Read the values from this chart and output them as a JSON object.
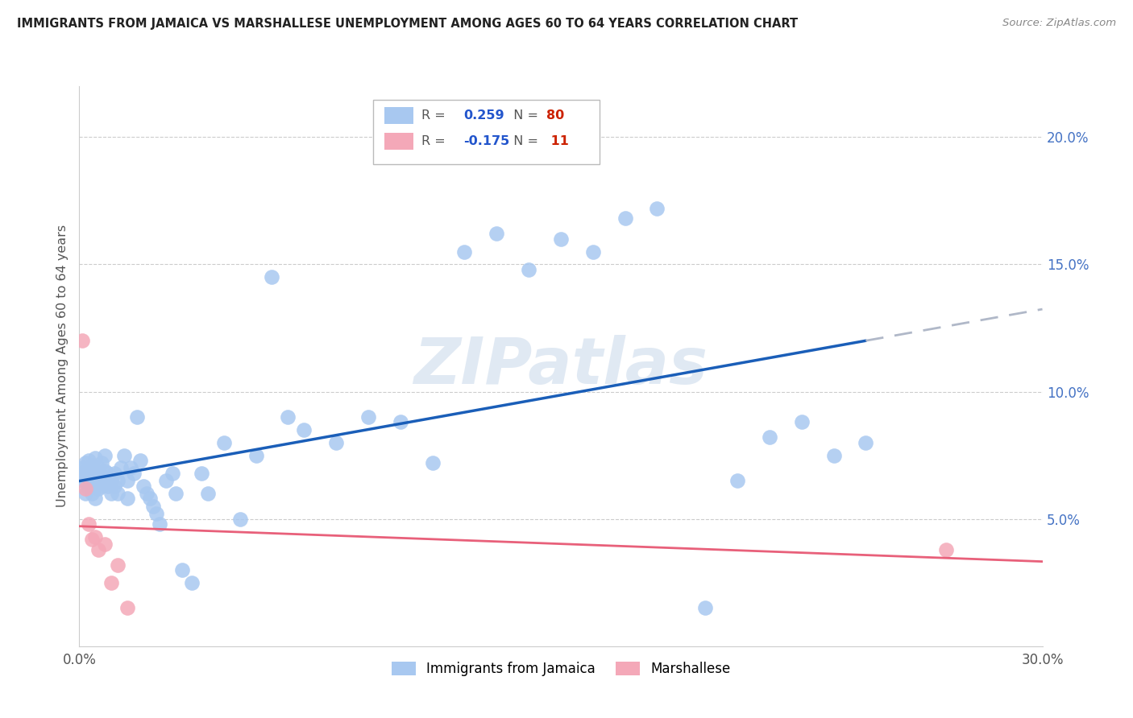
{
  "title": "IMMIGRANTS FROM JAMAICA VS MARSHALLESE UNEMPLOYMENT AMONG AGES 60 TO 64 YEARS CORRELATION CHART",
  "source": "Source: ZipAtlas.com",
  "ylabel": "Unemployment Among Ages 60 to 64 years",
  "xlim": [
    0.0,
    0.3
  ],
  "ylim": [
    0.0,
    0.22
  ],
  "x_ticks": [
    0.0,
    0.05,
    0.1,
    0.15,
    0.2,
    0.25,
    0.3
  ],
  "x_tick_labels": [
    "0.0%",
    "",
    "",
    "",
    "",
    "",
    "30.0%"
  ],
  "y_ticks_right": [
    0.05,
    0.1,
    0.15,
    0.2
  ],
  "y_tick_labels_right": [
    "5.0%",
    "10.0%",
    "15.0%",
    "20.0%"
  ],
  "r_jamaica": 0.259,
  "n_jamaica": 80,
  "r_marshallese": -0.175,
  "n_marshallese": 11,
  "jamaica_color": "#a8c8f0",
  "marshallese_color": "#f4a8b8",
  "jamaica_line_color": "#1a5eb8",
  "marshallese_line_color": "#e8607a",
  "jamaica_extend_color": "#b0b8c8",
  "watermark_text": "ZIPatlas",
  "jamaica_scatter_x": [
    0.001,
    0.001,
    0.001,
    0.002,
    0.002,
    0.002,
    0.002,
    0.003,
    0.003,
    0.003,
    0.003,
    0.004,
    0.004,
    0.004,
    0.004,
    0.005,
    0.005,
    0.005,
    0.005,
    0.006,
    0.006,
    0.006,
    0.007,
    0.007,
    0.007,
    0.008,
    0.008,
    0.008,
    0.009,
    0.009,
    0.01,
    0.01,
    0.011,
    0.011,
    0.012,
    0.012,
    0.013,
    0.014,
    0.015,
    0.015,
    0.016,
    0.017,
    0.018,
    0.019,
    0.02,
    0.021,
    0.022,
    0.023,
    0.024,
    0.025,
    0.027,
    0.029,
    0.03,
    0.032,
    0.035,
    0.038,
    0.04,
    0.045,
    0.05,
    0.055,
    0.06,
    0.065,
    0.07,
    0.08,
    0.09,
    0.1,
    0.11,
    0.12,
    0.13,
    0.14,
    0.15,
    0.16,
    0.17,
    0.18,
    0.195,
    0.205,
    0.215,
    0.225,
    0.235,
    0.245
  ],
  "jamaica_scatter_y": [
    0.065,
    0.068,
    0.07,
    0.06,
    0.065,
    0.068,
    0.072,
    0.062,
    0.066,
    0.07,
    0.073,
    0.06,
    0.063,
    0.067,
    0.071,
    0.058,
    0.063,
    0.068,
    0.074,
    0.062,
    0.066,
    0.07,
    0.063,
    0.067,
    0.072,
    0.065,
    0.069,
    0.075,
    0.063,
    0.068,
    0.06,
    0.065,
    0.063,
    0.068,
    0.06,
    0.065,
    0.07,
    0.075,
    0.058,
    0.065,
    0.07,
    0.068,
    0.09,
    0.073,
    0.063,
    0.06,
    0.058,
    0.055,
    0.052,
    0.048,
    0.065,
    0.068,
    0.06,
    0.03,
    0.025,
    0.068,
    0.06,
    0.08,
    0.05,
    0.075,
    0.145,
    0.09,
    0.085,
    0.08,
    0.09,
    0.088,
    0.072,
    0.155,
    0.162,
    0.148,
    0.16,
    0.155,
    0.168,
    0.172,
    0.015,
    0.065,
    0.082,
    0.088,
    0.075,
    0.08
  ],
  "marshallese_scatter_x": [
    0.001,
    0.002,
    0.003,
    0.004,
    0.005,
    0.006,
    0.008,
    0.01,
    0.012,
    0.27
  ],
  "marshallese_scatter_y": [
    0.12,
    0.062,
    0.048,
    0.042,
    0.043,
    0.038,
    0.04,
    0.025,
    0.032,
    0.038
  ],
  "marshallese_extra_x": [
    0.015
  ],
  "marshallese_extra_y": [
    0.015
  ]
}
